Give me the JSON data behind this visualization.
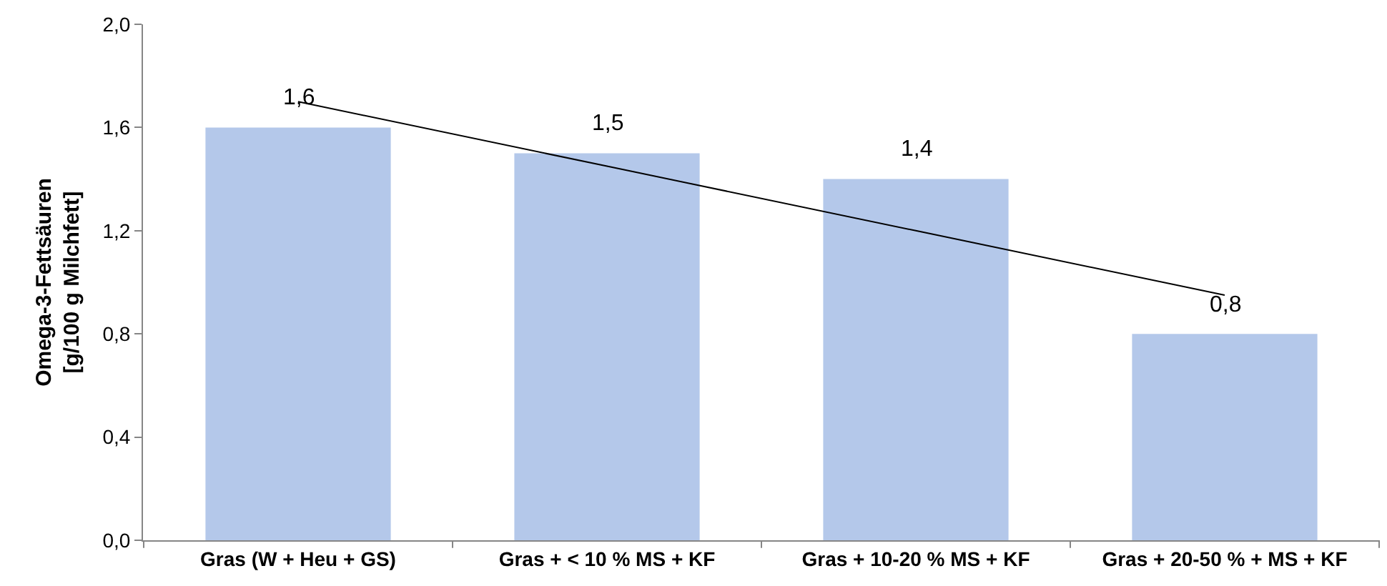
{
  "chart_data": {
    "type": "bar",
    "ylabel": "Omega-3-Fettsäuren\n[g/100 g Milchfett]",
    "categories": [
      "Gras (W + Heu + GS)",
      "Gras + < 10 % MS + KF",
      "Gras + 10-20 % MS + KF",
      "Gras + 20-50 % + MS + KF"
    ],
    "series": [
      {
        "color": "#b4c8ea",
        "values": [
          1.6,
          1.5,
          1.4,
          0.8
        ],
        "value_labels": [
          "1,6",
          "1,5",
          "1,4",
          "0,8"
        ]
      },
      {
        "type": "line",
        "color": "#000000",
        "x": [
          "Gras (W + Heu + GS)",
          "Gras + < 10 % MS + KF",
          "Gras + 10-20 % MS + KF",
          "Gras + 20-50 % + MS + KF"
        ],
        "values": [
          1.7,
          1.45,
          1.2,
          0.95
        ]
      }
    ],
    "ylim": [
      0,
      2
    ],
    "yticks": [
      {
        "value": 0,
        "label": "0,0"
      },
      {
        "value": 0.4,
        "label": "0,4"
      },
      {
        "value": 0.8,
        "label": "0,8"
      },
      {
        "value": 1.2,
        "label": "1,2"
      },
      {
        "value": 1.6,
        "label": "1,6"
      },
      {
        "value": 2,
        "label": "2,0"
      }
    ],
    "grid": false
  }
}
